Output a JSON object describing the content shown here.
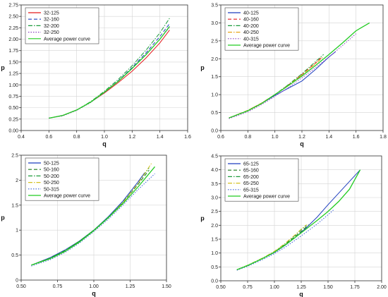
{
  "chart_data": [
    {
      "type": "line",
      "xlabel": "q",
      "ylabel": "p",
      "xlim": [
        0.4,
        1.6
      ],
      "ylim": [
        0.0,
        2.75
      ],
      "xticks": [
        "0.4",
        "0.6",
        "0.8",
        "1.0",
        "1.2",
        "1.4",
        "1.6"
      ],
      "yticks": [
        "0.00",
        "0.25",
        "0.50",
        "0.75",
        "1.00",
        "1.25",
        "1.50",
        "1.75",
        "2.00",
        "2.25",
        "2.50",
        "2.75"
      ],
      "grid": true,
      "legend": "top-left",
      "series": [
        {
          "name": "32-125",
          "color": "#e31a1c",
          "dash": "solid",
          "x": [
            0.6,
            0.7,
            0.8,
            0.9,
            1.0,
            1.1,
            1.2,
            1.3,
            1.4,
            1.47
          ],
          "y": [
            0.27,
            0.33,
            0.45,
            0.62,
            0.82,
            1.05,
            1.3,
            1.59,
            1.92,
            2.2
          ]
        },
        {
          "name": "32-160",
          "color": "#1f3fbf",
          "dash": "dash",
          "x": [
            0.6,
            0.7,
            0.8,
            0.9,
            1.0,
            1.1,
            1.2,
            1.3,
            1.4,
            1.47
          ],
          "y": [
            0.27,
            0.33,
            0.45,
            0.62,
            0.84,
            1.09,
            1.38,
            1.7,
            2.06,
            2.34
          ]
        },
        {
          "name": "32-200",
          "color": "#1a9a3a",
          "dash": "dashdot",
          "x": [
            0.6,
            0.7,
            0.8,
            0.9,
            1.0,
            1.1,
            1.2,
            1.3,
            1.4,
            1.47
          ],
          "y": [
            0.27,
            0.33,
            0.45,
            0.63,
            0.86,
            1.12,
            1.42,
            1.76,
            2.14,
            2.46
          ]
        },
        {
          "name": "32-250",
          "color": "#8a3fc0",
          "dash": "dot",
          "x": [
            0.6,
            0.7,
            0.8,
            0.9,
            1.0,
            1.1,
            1.2,
            1.3,
            1.4,
            1.47
          ],
          "y": [
            0.27,
            0.32,
            0.44,
            0.61,
            0.83,
            1.08,
            1.36,
            1.67,
            2.0,
            2.26
          ]
        },
        {
          "name": "Average power curve",
          "color": "#22cc22",
          "dash": "solid",
          "x": [
            0.6,
            0.7,
            0.8,
            0.9,
            1.0,
            1.1,
            1.2,
            1.3,
            1.4,
            1.47
          ],
          "y": [
            0.27,
            0.33,
            0.45,
            0.62,
            0.84,
            1.08,
            1.36,
            1.66,
            2.0,
            2.28
          ]
        }
      ]
    },
    {
      "type": "line",
      "xlabel": "q",
      "ylabel": "p",
      "xlim": [
        0.6,
        1.8
      ],
      "ylim": [
        0.0,
        3.5
      ],
      "xticks": [
        "0.6",
        "0.8",
        "1.0",
        "1.2",
        "1.4",
        "1.6",
        "1.8"
      ],
      "yticks": [
        "0.0",
        "0.5",
        "1.0",
        "1.5",
        "2.0",
        "2.5",
        "3.0",
        "3.5"
      ],
      "grid": true,
      "legend": "top-left",
      "series": [
        {
          "name": "40-125",
          "color": "#1f3fbf",
          "dash": "solid",
          "x": [
            0.66,
            0.8,
            0.9,
            1.0,
            1.1,
            1.2,
            1.3,
            1.4,
            1.45
          ],
          "y": [
            0.35,
            0.55,
            0.75,
            0.98,
            1.18,
            1.38,
            1.7,
            2.05,
            2.2
          ]
        },
        {
          "name": "40-160",
          "color": "#e31a1c",
          "dash": "dash",
          "x": [
            0.66,
            0.8,
            0.9,
            1.0,
            1.1,
            1.2,
            1.3,
            1.35
          ],
          "y": [
            0.35,
            0.56,
            0.76,
            1.0,
            1.27,
            1.56,
            1.88,
            2.06
          ]
        },
        {
          "name": "40-200",
          "color": "#1a9a3a",
          "dash": "dashdot",
          "x": [
            0.66,
            0.8,
            0.9,
            1.0,
            1.1,
            1.2,
            1.3,
            1.36
          ],
          "y": [
            0.35,
            0.56,
            0.76,
            1.0,
            1.28,
            1.58,
            1.92,
            2.12
          ]
        },
        {
          "name": "40-250",
          "color": "#e8a317",
          "dash": "dashdot",
          "x": [
            0.66,
            0.8,
            0.9,
            1.0,
            1.1,
            1.2,
            1.3,
            1.36
          ],
          "y": [
            0.35,
            0.56,
            0.76,
            1.0,
            1.26,
            1.55,
            1.86,
            2.06
          ]
        },
        {
          "name": "40-315",
          "color": "#8a3fc0",
          "dash": "dot",
          "x": [
            0.66,
            0.8,
            0.9,
            1.0,
            1.1,
            1.2,
            1.3,
            1.4,
            1.5,
            1.6
          ],
          "y": [
            0.33,
            0.52,
            0.72,
            0.95,
            1.2,
            1.47,
            1.75,
            2.05,
            2.37,
            2.7
          ]
        },
        {
          "name": "Average power curve",
          "color": "#22cc22",
          "dash": "solid",
          "x": [
            0.66,
            0.8,
            0.9,
            1.0,
            1.1,
            1.2,
            1.3,
            1.4,
            1.5,
            1.6,
            1.7
          ],
          "y": [
            0.35,
            0.55,
            0.75,
            1.0,
            1.25,
            1.52,
            1.81,
            2.12,
            2.44,
            2.78,
            3.0
          ]
        }
      ]
    },
    {
      "type": "line",
      "xlabel": "q",
      "ylabel": "p",
      "xlim": [
        0.5,
        1.5
      ],
      "ylim": [
        0.0,
        2.5
      ],
      "xticks": [
        "0.50",
        "0.75",
        "1.00",
        "1.25",
        "1.50"
      ],
      "yticks": [
        "0",
        "0.5",
        "1",
        "1.5",
        "2",
        "2.5"
      ],
      "grid": true,
      "legend": "top-left",
      "series": [
        {
          "name": "50-125",
          "color": "#1f3fbf",
          "dash": "solid",
          "x": [
            0.57,
            0.7,
            0.8,
            0.9,
            1.0,
            1.1,
            1.2,
            1.3,
            1.35
          ],
          "y": [
            0.3,
            0.45,
            0.6,
            0.78,
            1.0,
            1.27,
            1.58,
            1.95,
            2.15
          ]
        },
        {
          "name": "50-160",
          "color": "#1a7a1a",
          "dash": "dash",
          "x": [
            0.57,
            0.7,
            0.8,
            0.9,
            1.0,
            1.1,
            1.2,
            1.3,
            1.38
          ],
          "y": [
            0.3,
            0.44,
            0.58,
            0.77,
            1.0,
            1.25,
            1.55,
            1.9,
            2.2
          ]
        },
        {
          "name": "50-200",
          "color": "#1a9a3a",
          "dash": "dashdot",
          "x": [
            0.57,
            0.7,
            0.8,
            0.9,
            1.0,
            1.1,
            1.2,
            1.3,
            1.38
          ],
          "y": [
            0.3,
            0.44,
            0.59,
            0.78,
            1.0,
            1.26,
            1.56,
            1.92,
            2.25
          ]
        },
        {
          "name": "50-250",
          "color": "#d4c020",
          "dash": "dashdot",
          "x": [
            0.57,
            0.7,
            0.8,
            0.9,
            1.0,
            1.1,
            1.2,
            1.3,
            1.4
          ],
          "y": [
            0.3,
            0.43,
            0.57,
            0.76,
            0.99,
            1.25,
            1.55,
            1.92,
            2.35
          ]
        },
        {
          "name": "50-315",
          "color": "#3a5fd9",
          "dash": "dot",
          "x": [
            0.57,
            0.7,
            0.8,
            0.9,
            1.0,
            1.1,
            1.2,
            1.3,
            1.42
          ],
          "y": [
            0.28,
            0.41,
            0.55,
            0.74,
            0.97,
            1.22,
            1.5,
            1.8,
            2.13
          ]
        },
        {
          "name": "Average power curve",
          "color": "#22cc22",
          "dash": "solid",
          "x": [
            0.57,
            0.7,
            0.8,
            0.9,
            1.0,
            1.1,
            1.2,
            1.3,
            1.42
          ],
          "y": [
            0.3,
            0.43,
            0.57,
            0.76,
            0.99,
            1.25,
            1.53,
            1.85,
            2.27
          ]
        }
      ]
    },
    {
      "type": "line",
      "xlabel": "q",
      "ylabel": "p",
      "xlim": [
        0.5,
        2.0
      ],
      "ylim": [
        0.0,
        4.5
      ],
      "xticks": [
        "0.50",
        "0.75",
        "1.00",
        "1.25",
        "1.50",
        "1.75",
        "2.00"
      ],
      "yticks": [
        "0.0",
        "0.5",
        "1.0",
        "1.5",
        "2.0",
        "2.5",
        "3.0",
        "3.5",
        "4.0",
        "4.5"
      ],
      "grid": true,
      "legend": "top-left",
      "series": [
        {
          "name": "65-125",
          "color": "#1f3fbf",
          "dash": "solid",
          "x": [
            0.65,
            0.75,
            0.9,
            1.0,
            1.1,
            1.2,
            1.3,
            1.4,
            1.5,
            1.6,
            1.7,
            1.8
          ],
          "y": [
            0.4,
            0.55,
            0.82,
            1.02,
            1.28,
            1.58,
            1.92,
            2.3,
            2.74,
            3.16,
            3.58,
            4.0
          ]
        },
        {
          "name": "65-160",
          "color": "#1a7a1a",
          "dash": "dash",
          "x": [
            0.65,
            0.75,
            0.9,
            1.0,
            1.1,
            1.2,
            1.3,
            1.32
          ],
          "y": [
            0.4,
            0.55,
            0.83,
            1.04,
            1.31,
            1.62,
            1.95,
            2.02
          ]
        },
        {
          "name": "65-200",
          "color": "#1a9a3a",
          "dash": "dashdot",
          "x": [
            0.65,
            0.75,
            0.9,
            1.0,
            1.1,
            1.2,
            1.25,
            1.3
          ],
          "y": [
            0.4,
            0.56,
            0.84,
            1.06,
            1.34,
            1.66,
            1.84,
            2.0
          ]
        },
        {
          "name": "65-250",
          "color": "#d4c020",
          "dash": "dashdot",
          "x": [
            0.65,
            0.75,
            0.9,
            1.0,
            1.1,
            1.2,
            1.25,
            1.3
          ],
          "y": [
            0.4,
            0.56,
            0.84,
            1.06,
            1.35,
            1.68,
            1.86,
            2.02
          ]
        },
        {
          "name": "65-315",
          "color": "#3a5fd9",
          "dash": "dot",
          "x": [
            0.65,
            0.75,
            0.9,
            1.0,
            1.1,
            1.2,
            1.3,
            1.4,
            1.5,
            1.55
          ],
          "y": [
            0.38,
            0.52,
            0.78,
            0.98,
            1.21,
            1.48,
            1.76,
            2.05,
            2.38,
            2.55
          ]
        },
        {
          "name": "Average power curve",
          "color": "#22cc22",
          "dash": "solid",
          "x": [
            0.65,
            0.75,
            0.9,
            1.0,
            1.1,
            1.2,
            1.3,
            1.4,
            1.5,
            1.6,
            1.7,
            1.8
          ],
          "y": [
            0.4,
            0.55,
            0.82,
            1.03,
            1.29,
            1.58,
            1.88,
            2.18,
            2.5,
            2.86,
            3.3,
            4.0
          ]
        }
      ]
    }
  ]
}
